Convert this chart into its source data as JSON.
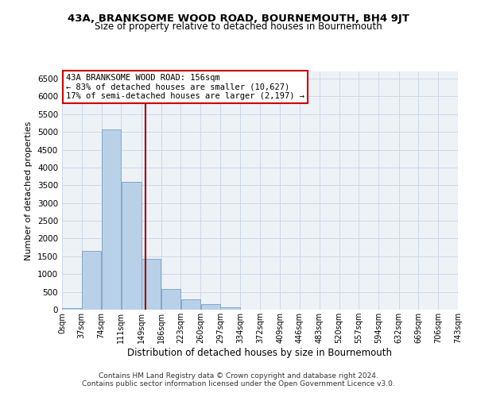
{
  "title": "43A, BRANKSOME WOOD ROAD, BOURNEMOUTH, BH4 9JT",
  "subtitle": "Size of property relative to detached houses in Bournemouth",
  "xlabel": "Distribution of detached houses by size in Bournemouth",
  "ylabel": "Number of detached properties",
  "bin_edges": [
    0,
    37,
    74,
    111,
    149,
    186,
    223,
    260,
    297,
    334,
    372,
    409,
    446,
    483,
    520,
    557,
    594,
    632,
    669,
    706,
    743
  ],
  "bin_labels": [
    "0sqm",
    "37sqm",
    "74sqm",
    "111sqm",
    "149sqm",
    "186sqm",
    "223sqm",
    "260sqm",
    "297sqm",
    "334sqm",
    "372sqm",
    "409sqm",
    "446sqm",
    "483sqm",
    "520sqm",
    "557sqm",
    "594sqm",
    "632sqm",
    "669sqm",
    "706sqm",
    "743sqm"
  ],
  "bar_heights": [
    50,
    1650,
    5080,
    3600,
    1420,
    580,
    300,
    150,
    60,
    0,
    0,
    0,
    0,
    0,
    0,
    0,
    0,
    0,
    0,
    0
  ],
  "bar_color": "#b8d0e8",
  "bar_edge_color": "#85a8c8",
  "property_line_x": 156,
  "property_line_color": "#990000",
  "annotation_line1": "43A BRANKSOME WOOD ROAD: 156sqm",
  "annotation_line2": "← 83% of detached houses are smaller (10,627)",
  "annotation_line3": "17% of semi-detached houses are larger (2,197) →",
  "ylim": [
    0,
    6700
  ],
  "yticks": [
    0,
    500,
    1000,
    1500,
    2000,
    2500,
    3000,
    3500,
    4000,
    4500,
    5000,
    5500,
    6000,
    6500
  ],
  "grid_color": "#ccd8e8",
  "background_color": "#edf2f7",
  "footer_line1": "Contains HM Land Registry data © Crown copyright and database right 2024.",
  "footer_line2": "Contains public sector information licensed under the Open Government Licence v3.0."
}
